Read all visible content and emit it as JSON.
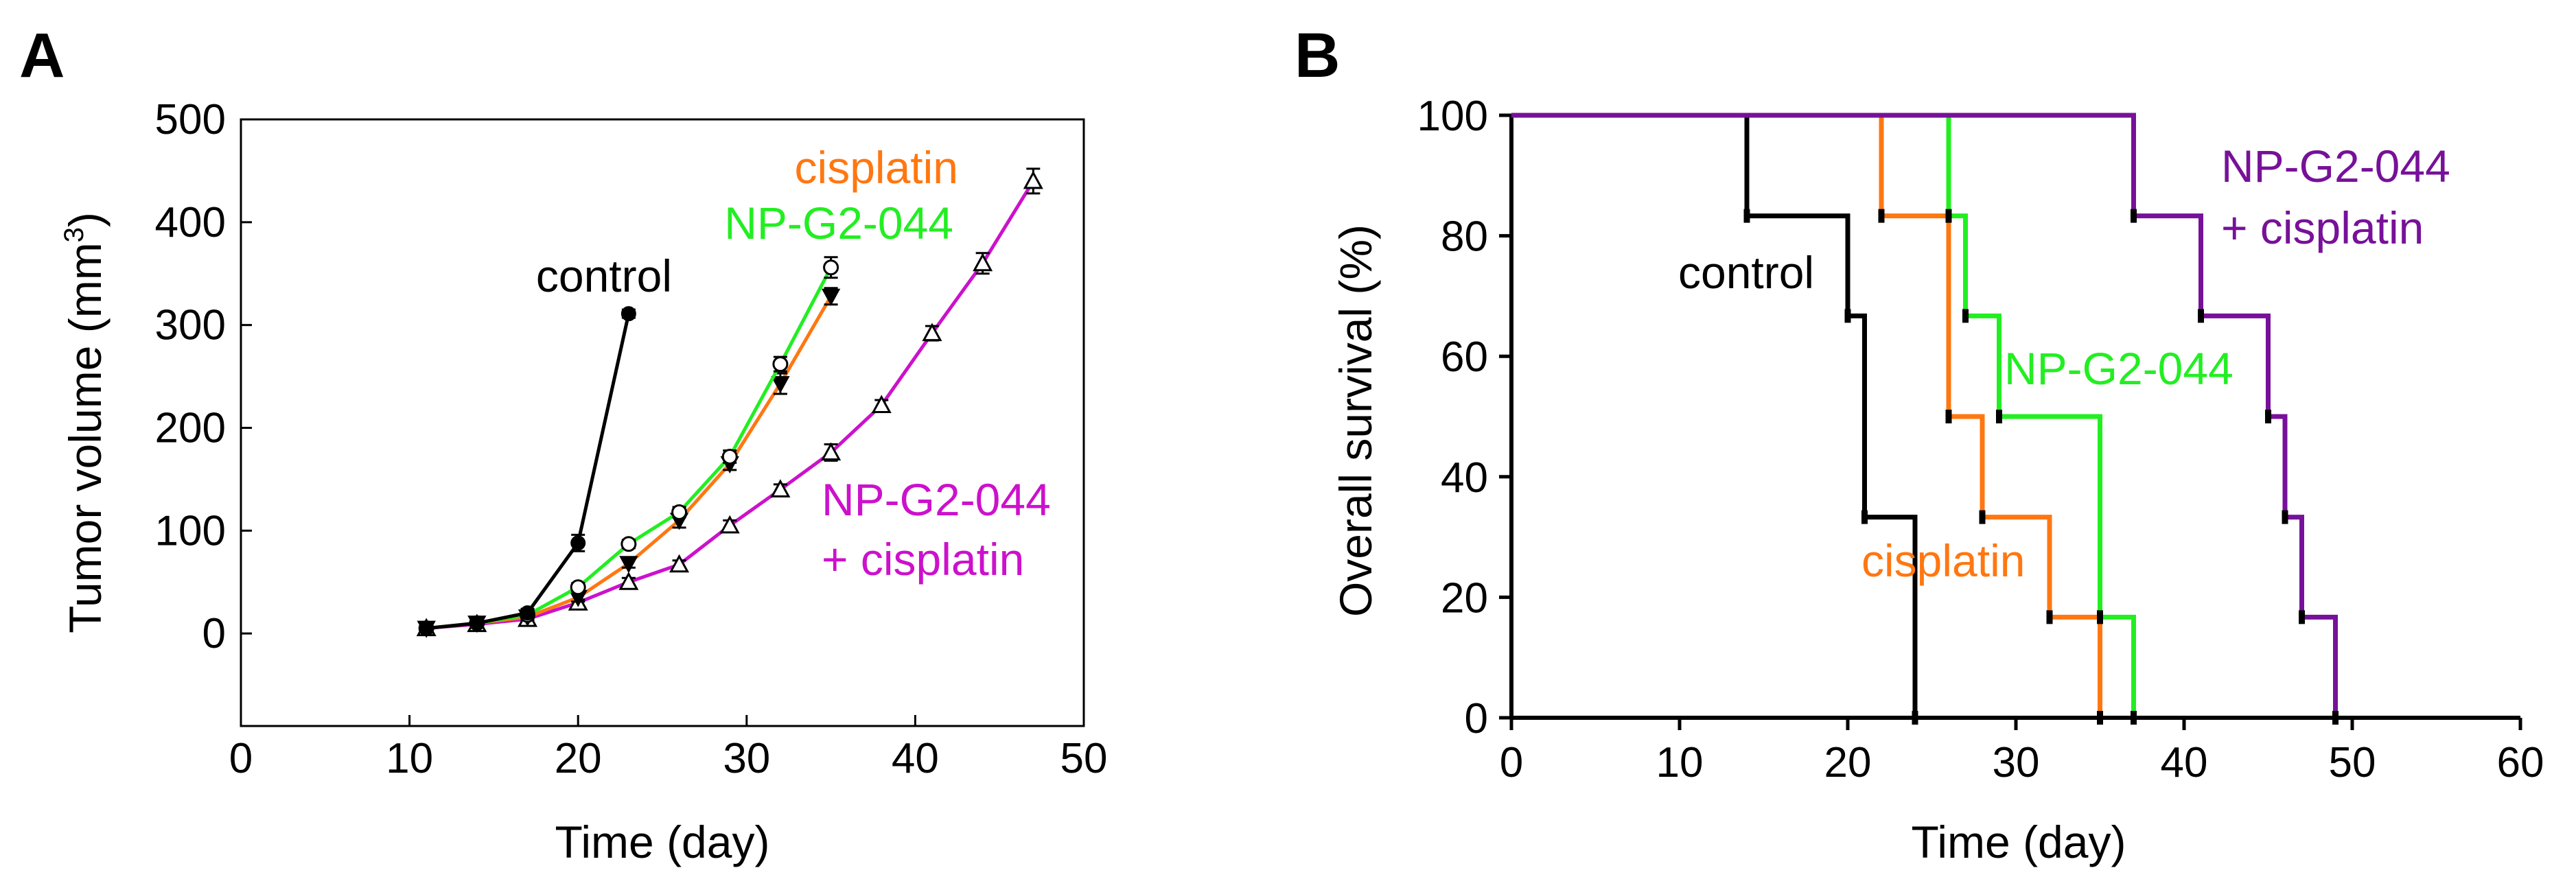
{
  "chart_data": [
    {
      "panel": "A",
      "type": "line",
      "xlabel": "Time (day)",
      "ylabel": "Tumor volume (mm",
      "ylabel_sup": "3",
      "ylabel_close": ")",
      "xlim": [
        0,
        50
      ],
      "ylim": [
        -90,
        500
      ],
      "xticks": [
        0,
        10,
        20,
        30,
        40,
        50
      ],
      "yticks": [
        0,
        100,
        200,
        300,
        400,
        500
      ],
      "grid": false,
      "series": [
        {
          "name": "control",
          "color": "#000000",
          "marker": "filled-circle",
          "x": [
            11,
            14,
            17,
            20,
            23
          ],
          "y": [
            5,
            10,
            20,
            88,
            311
          ],
          "err": [
            3,
            3,
            4,
            8,
            4
          ]
        },
        {
          "name": "NP-G2-044",
          "color": "#22ee22",
          "marker": "open-circle",
          "x": [
            11,
            14,
            17,
            20,
            23,
            26,
            29,
            32,
            35
          ],
          "y": [
            5,
            10,
            18,
            45,
            87,
            118,
            172,
            262,
            356
          ],
          "err": [
            3,
            3,
            3,
            4,
            4,
            5,
            6,
            7,
            10
          ]
        },
        {
          "name": "cisplatin",
          "color": "#ff7711",
          "marker": "filled-triangle-down",
          "x": [
            11,
            14,
            17,
            20,
            23,
            26,
            29,
            32,
            35
          ],
          "y": [
            5,
            10,
            16,
            35,
            68,
            110,
            165,
            243,
            328
          ],
          "err": [
            3,
            3,
            3,
            4,
            4,
            7,
            6,
            10,
            8
          ]
        },
        {
          "name": "NP-G2-044 + cisplatin",
          "color": "#cc11cc",
          "marker": "open-triangle",
          "x": [
            11,
            14,
            17,
            20,
            23,
            26,
            29,
            32,
            35,
            38,
            41,
            44,
            47
          ],
          "y": [
            5,
            9,
            14,
            30,
            50,
            67,
            105,
            140,
            176,
            222,
            292,
            360,
            440
          ],
          "err": [
            3,
            3,
            3,
            3,
            4,
            4,
            5,
            5,
            8,
            5,
            7,
            10,
            12
          ]
        }
      ],
      "annotations": [
        {
          "text": "control",
          "color": "#000000"
        },
        {
          "text": "cisplatin",
          "color": "#ff7711"
        },
        {
          "text": "NP-G2-044",
          "color": "#22ee22"
        },
        {
          "text": "NP-G2-044",
          "color": "#cc11cc"
        },
        {
          "text": "+ cisplatin",
          "color": "#cc11cc"
        }
      ]
    },
    {
      "panel": "B",
      "type": "line",
      "subtype": "step",
      "xlabel": "Time (day)",
      "ylabel": "Overall survival (%)",
      "xlim": [
        0,
        60
      ],
      "ylim": [
        0,
        100
      ],
      "xticks": [
        0,
        10,
        20,
        30,
        40,
        50,
        60
      ],
      "yticks": [
        0,
        20,
        40,
        60,
        80,
        100
      ],
      "grid": false,
      "series": [
        {
          "name": "control",
          "color": "#000000",
          "x": [
            0,
            14,
            20,
            21,
            24
          ],
          "y": [
            100,
            83.3,
            66.7,
            33.3,
            0
          ]
        },
        {
          "name": "cisplatin",
          "color": "#ff7711",
          "x": [
            0,
            22,
            26,
            28,
            32,
            35
          ],
          "y": [
            100,
            83.3,
            50,
            33.3,
            16.7,
            0
          ]
        },
        {
          "name": "NP-G2-044",
          "color": "#22ee22",
          "x": [
            0,
            26,
            27,
            29,
            35,
            37
          ],
          "y": [
            100,
            83.3,
            66.7,
            50,
            16.7,
            0
          ]
        },
        {
          "name": "NP-G2-044 + cisplatin",
          "color": "#771199",
          "x": [
            0,
            37,
            41,
            45,
            46,
            47,
            49
          ],
          "y": [
            100,
            83.3,
            66.7,
            50,
            33.3,
            16.7,
            0
          ]
        }
      ],
      "annotations": [
        {
          "text": "control",
          "color": "#000000"
        },
        {
          "text": "cisplatin",
          "color": "#ff7711"
        },
        {
          "text": "NP-G2-044",
          "color": "#22ee22"
        },
        {
          "text": "NP-G2-044",
          "color": "#771199"
        },
        {
          "text": "+ cisplatin",
          "color": "#771199"
        }
      ]
    }
  ]
}
